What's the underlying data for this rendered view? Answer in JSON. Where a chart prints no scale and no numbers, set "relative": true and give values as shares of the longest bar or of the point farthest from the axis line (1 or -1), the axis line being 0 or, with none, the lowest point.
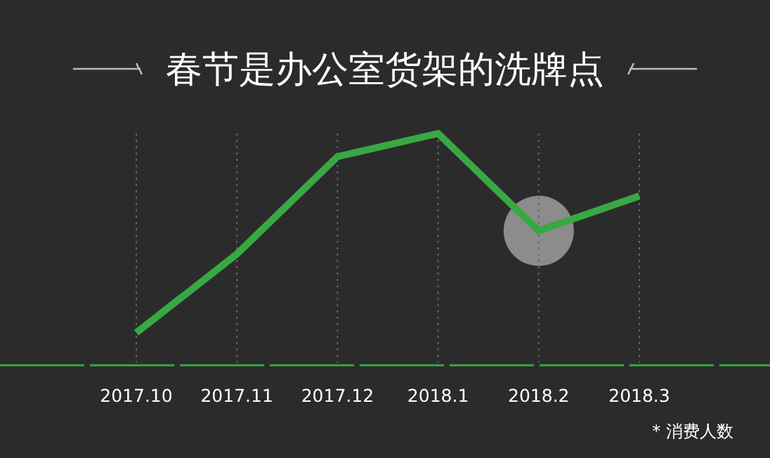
{
  "chart_data": {
    "type": "line",
    "title": "春节是办公室货架的洗牌点",
    "categories": [
      "2017.10",
      "2017.11",
      "2017.12",
      "2018.1",
      "2018.2",
      "2018.3"
    ],
    "values": [
      0.14,
      0.48,
      0.9,
      1,
      0.58,
      0.73
    ],
    "relative": true,
    "grid": "x",
    "color": "#38a844",
    "marker": "none",
    "line_style": "solid",
    "annotations": [
      "* 消费人数"
    ]
  }
}
